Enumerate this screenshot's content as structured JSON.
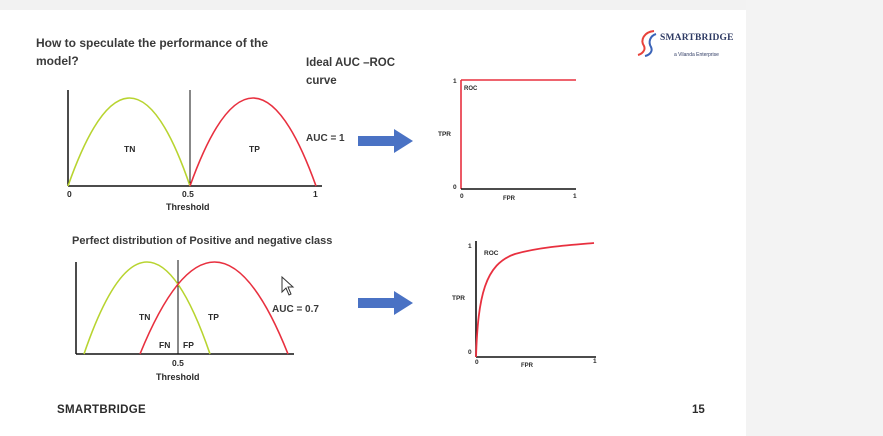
{
  "slide": {
    "title": "How to speculate the performance of the model?",
    "ideal_title": "Ideal AUC –ROC curve",
    "perfect_title": "Perfect distribution of Positive and negative class",
    "auc_ideal": "AUC = 1",
    "auc_perfect": "AUC = 0.7",
    "footer_brand": "SMARTBRIDGE",
    "page_number": "15"
  },
  "logo": {
    "name": "SMARTBRIDGE",
    "tagline": "a Vilanda Enterprise"
  },
  "diagram_top": {
    "tn_label": "TN",
    "tp_label": "TP",
    "x_ticks": [
      "0",
      "0.5",
      "1"
    ],
    "x_label": "Threshold"
  },
  "diagram_bottom": {
    "tn_label": "TN",
    "tp_label": "TP",
    "fn_label": "FN",
    "fp_label": "FP",
    "x_tick": "0.5",
    "x_label": "Threshold"
  },
  "roc_ideal": {
    "curve_label": "ROC",
    "y_label": "TPR",
    "x_label": "FPR",
    "y_ticks": [
      "1",
      "0"
    ],
    "x_ticks": [
      "0",
      "1"
    ]
  },
  "roc_real": {
    "curve_label": "ROC",
    "y_label": "TPR",
    "x_label": "FPR",
    "y_ticks": [
      "1",
      "0"
    ],
    "x_ticks": [
      "0",
      "1"
    ]
  },
  "colors": {
    "tn_curve": "#b8d430",
    "tp_curve": "#e8303f",
    "arrow": "#4a72c4",
    "roc": "#e8303f"
  }
}
